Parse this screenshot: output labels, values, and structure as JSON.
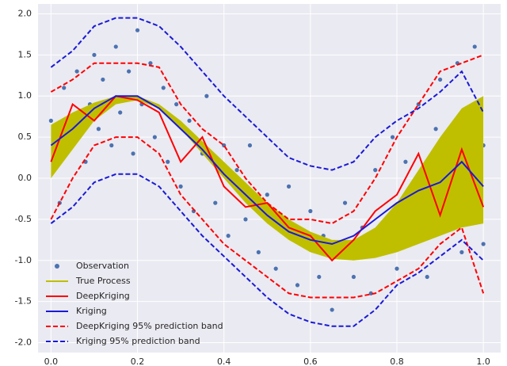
{
  "chart_data": {
    "type": "line",
    "xlim": [
      -0.03,
      1.04
    ],
    "ylim": [
      -2.12,
      2.12
    ],
    "xticks": [
      {
        "value": 0,
        "label": "0.0"
      },
      0.2,
      0.4,
      0.6,
      0.8,
      {
        "value": 1,
        "label": "1.0"
      }
    ],
    "yticks": [
      {
        "value": -2,
        "label": "-2.0"
      },
      -1.5,
      {
        "value": -1,
        "label": "-1.0"
      },
      -0.5,
      {
        "value": 0,
        "label": "0.0"
      },
      0.5,
      {
        "value": 1,
        "label": "1.0"
      },
      1.5,
      {
        "value": 2,
        "label": "2.0"
      }
    ],
    "grid": true,
    "legend": "lower left",
    "x": [
      0,
      0.05,
      0.1,
      0.15,
      0.2,
      0.25,
      0.3,
      0.35,
      0.4,
      0.45,
      0.5,
      0.55,
      0.6,
      0.65,
      0.7,
      0.75,
      0.8,
      0.85,
      0.9,
      0.95,
      1
    ],
    "series": [
      {
        "name": "Observation",
        "kind": "scatter",
        "color": "#4c72b0",
        "x": [
          0,
          0.02,
          0.03,
          0.05,
          0.06,
          0.08,
          0.09,
          0.1,
          0.11,
          0.12,
          0.14,
          0.15,
          0.16,
          0.18,
          0.19,
          0.2,
          0.21,
          0.23,
          0.24,
          0.26,
          0.27,
          0.29,
          0.3,
          0.32,
          0.33,
          0.35,
          0.36,
          0.38,
          0.4,
          0.41,
          0.43,
          0.45,
          0.46,
          0.48,
          0.5,
          0.52,
          0.53,
          0.55,
          0.57,
          0.58,
          0.6,
          0.62,
          0.63,
          0.65,
          0.67,
          0.68,
          0.7,
          0.72,
          0.74,
          0.75,
          0.77,
          0.79,
          0.8,
          0.82,
          0.84,
          0.85,
          0.87,
          0.89,
          0.9,
          0.92,
          0.94,
          0.95,
          0.97,
          0.98,
          1,
          1
        ],
        "values": [
          0.7,
          -0.3,
          1.1,
          0.5,
          1.3,
          0.2,
          0.9,
          1.5,
          0.6,
          1.2,
          0.4,
          1.6,
          0.8,
          1.3,
          0.3,
          1.8,
          0.9,
          1.4,
          0.5,
          1.1,
          0.2,
          0.9,
          -0.1,
          0.7,
          -0.4,
          0.3,
          1.0,
          -0.3,
          0.4,
          -0.7,
          0.1,
          -0.5,
          0.4,
          -0.9,
          -0.2,
          -1.1,
          -0.5,
          -0.1,
          -1.3,
          -0.8,
          -0.4,
          -1.2,
          -0.7,
          -1.6,
          -0.9,
          -0.3,
          -1.2,
          -0.6,
          -1.4,
          0.1,
          -0.8,
          0.5,
          -1.1,
          0.2,
          -0.4,
          0.9,
          -1.2,
          0.6,
          1.2,
          -0.3,
          1.4,
          -0.9,
          0.8,
          1.6,
          0.4,
          -0.8
        ]
      },
      {
        "name": "True Process",
        "kind": "band",
        "color": "#bfbf00",
        "lower": [
          0,
          0.35,
          0.7,
          0.9,
          0.95,
          0.85,
          0.6,
          0.3,
          0,
          -0.3,
          -0.55,
          -0.75,
          -0.9,
          -0.98,
          -1,
          -0.97,
          -0.9,
          -0.8,
          -0.7,
          -0.6,
          -0.55
        ],
        "values": [
          0.65,
          0.8,
          0.92,
          1,
          1,
          0.9,
          0.7,
          0.45,
          0.2,
          -0.05,
          -0.3,
          -0.5,
          -0.65,
          -0.75,
          -0.75,
          -0.6,
          -0.3,
          0.1,
          0.5,
          0.85,
          1
        ]
      },
      {
        "name": "DeepKriging",
        "kind": "line",
        "color": "#ff0000",
        "values": [
          0.2,
          0.9,
          0.7,
          1,
          0.95,
          0.8,
          0.2,
          0.5,
          -0.1,
          -0.35,
          -0.3,
          -0.6,
          -0.7,
          -1,
          -0.75,
          -0.4,
          -0.2,
          0.3,
          -0.45,
          0.35,
          -0.35
        ]
      },
      {
        "name": "Kriging",
        "kind": "line",
        "color": "#1a1ad6",
        "values": [
          0.4,
          0.6,
          0.85,
          1,
          1,
          0.85,
          0.6,
          0.35,
          0.05,
          -0.2,
          -0.45,
          -0.65,
          -0.75,
          -0.8,
          -0.7,
          -0.5,
          -0.3,
          -0.15,
          -0.05,
          0.2,
          -0.1
        ]
      },
      {
        "name": "DeepKriging 95% prediction band",
        "kind": "dashband",
        "color": "#ff0000",
        "lower": [
          -0.5,
          0,
          0.4,
          0.5,
          0.5,
          0.3,
          -0.2,
          -0.5,
          -0.8,
          -1,
          -1.2,
          -1.4,
          -1.45,
          -1.45,
          -1.45,
          -1.4,
          -1.25,
          -1.1,
          -0.8,
          -0.6,
          -1.4
        ],
        "values": [
          1.05,
          1.2,
          1.4,
          1.4,
          1.4,
          1.35,
          0.9,
          0.6,
          0.4,
          0,
          -0.3,
          -0.5,
          -0.5,
          -0.55,
          -0.4,
          0,
          0.5,
          0.9,
          1.3,
          1.4,
          1.5
        ]
      },
      {
        "name": "Kriging 95% prediction band",
        "kind": "dashband",
        "color": "#1a1ad6",
        "lower": [
          -0.55,
          -0.35,
          -0.05,
          0.05,
          0.05,
          -0.1,
          -0.4,
          -0.7,
          -0.95,
          -1.2,
          -1.45,
          -1.65,
          -1.75,
          -1.8,
          -1.8,
          -1.6,
          -1.3,
          -1.15,
          -0.95,
          -0.75,
          -1
        ],
        "values": [
          1.35,
          1.55,
          1.85,
          1.95,
          1.95,
          1.85,
          1.6,
          1.3,
          1,
          0.75,
          0.5,
          0.25,
          0.15,
          0.1,
          0.2,
          0.5,
          0.7,
          0.85,
          1.05,
          1.3,
          0.8
        ]
      }
    ]
  }
}
